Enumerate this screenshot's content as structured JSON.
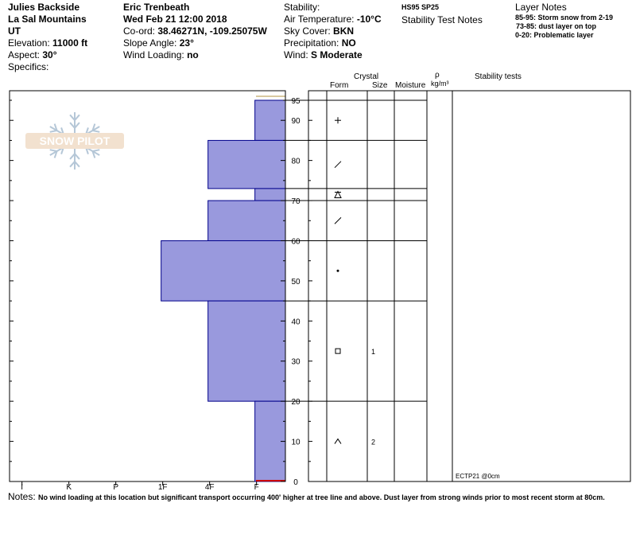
{
  "header": {
    "col1": {
      "location": "Julies Backside",
      "range": "La Sal Mountains",
      "state": "UT",
      "elevation_label": "Elevation:",
      "elevation_value": "11000 ft",
      "aspect_label": "Aspect:",
      "aspect_value": "30°",
      "specifics_label": "Specifics:"
    },
    "col2": {
      "observer": "Eric Trenbeath",
      "datetime": "Wed Feb 21 12:00 2018",
      "coord_label": "Co-ord:",
      "coord_value": "38.46271N, -109.25075W",
      "slope_label": "Slope Angle:",
      "slope_value": "23°",
      "wind_loading_label": "Wind Loading:",
      "wind_loading_value": "no"
    },
    "col3": {
      "stability_label": "Stability:",
      "air_temp_label": "Air Temperature:",
      "air_temp_value": "-10°C",
      "sky_label": "Sky Cover:",
      "sky_value": "BKN",
      "precip_label": "Precipitation:",
      "precip_value": "NO",
      "wind_label": "Wind:",
      "wind_value": "S Moderate"
    },
    "col4": {
      "hs_sp": "HS95  SP25",
      "title": "Stability Test Notes"
    },
    "col5": {
      "title": "Layer Notes",
      "notes": [
        "85-95: Storm snow from 2-19",
        "73-85: dust layer on top",
        "0-20: Problematic layer"
      ]
    }
  },
  "table_headers": {
    "crystal": "Crystal",
    "form": "Form",
    "size": "Size",
    "moisture": "Moisture",
    "rho": "ρ",
    "density_unit": "kg/m³",
    "stability_tests": "Stability tests"
  },
  "logo": {
    "text": "SNOW PILOT"
  },
  "footer": {
    "notes_label": "Notes:",
    "notes_text": "No wind loading at this location but significant transport occurring 400' higher at tree line and above. Dust layer from strong winds prior to most recent storm at 80cm."
  },
  "colors": {
    "layer_fill": "#9999dd",
    "layer_stroke": "#00008b",
    "ground_line": "#cc0000"
  },
  "chart_data": {
    "type": "bar",
    "orientation": "horizontal-stepped",
    "hardness_scale": [
      "I",
      "K",
      "P",
      "1F",
      "4F",
      "F"
    ],
    "hardness_value": {
      "F": 1,
      "4F": 2,
      "1F": 3,
      "P": 4,
      "K": 5,
      "I": 6
    },
    "ylim": [
      0,
      95
    ],
    "height_ticks": [
      0,
      10,
      20,
      30,
      40,
      50,
      60,
      70,
      80,
      90,
      95
    ],
    "layers": [
      {
        "bottom": 85,
        "top": 95,
        "hardness": "F"
      },
      {
        "bottom": 73,
        "top": 85,
        "hardness": "4F"
      },
      {
        "bottom": 70,
        "top": 73,
        "hardness": "F"
      },
      {
        "bottom": 60,
        "top": 70,
        "hardness": "4F"
      },
      {
        "bottom": 45,
        "top": 60,
        "hardness": "1F"
      },
      {
        "bottom": 20,
        "top": 45,
        "hardness": "4F"
      },
      {
        "bottom": 0,
        "top": 20,
        "hardness": "F"
      }
    ],
    "crystal_rows": [
      {
        "height": 90,
        "form_symbol": "+",
        "size": ""
      },
      {
        "height": 79,
        "form_symbol": "/",
        "size": ""
      },
      {
        "height": 71.5,
        "form_symbol": "Δ",
        "size": ""
      },
      {
        "height": 65,
        "form_symbol": "/",
        "size": ""
      },
      {
        "height": 52.5,
        "form_symbol": "•",
        "size": ""
      },
      {
        "height": 32.5,
        "form_symbol": "□",
        "size": "1"
      },
      {
        "height": 10,
        "form_symbol": "^",
        "size": "2"
      }
    ],
    "stability_tests": [
      {
        "height": 0,
        "label": "ECTP21 @0cm"
      }
    ]
  }
}
